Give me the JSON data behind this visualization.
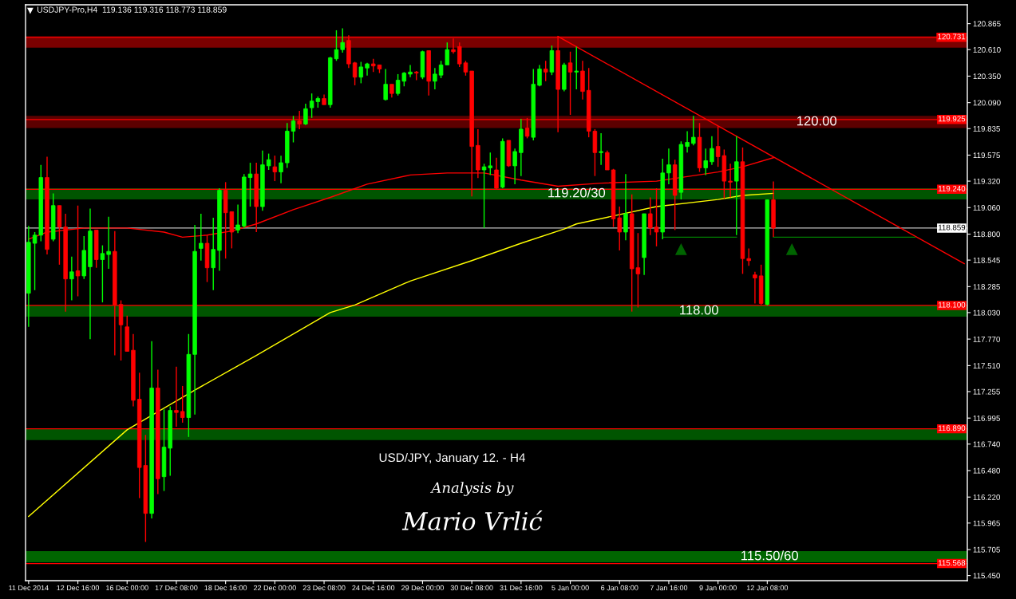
{
  "chart_data": {
    "type": "candlestick",
    "title": "USDJPY-Pro,H4  119.136 119.316 118.773 118.859",
    "categories": [
      "11 Dec 2014",
      null,
      null,
      null,
      null,
      null,
      null,
      null,
      "12 Dec 16:00",
      null,
      null,
      null,
      null,
      null,
      null,
      null,
      "16 Dec 00:00",
      null,
      null,
      null,
      null,
      null,
      null,
      null,
      "17 Dec 08:00",
      null,
      null,
      null,
      null,
      null,
      null,
      null,
      "18 Dec 16:00",
      null,
      null,
      null,
      null,
      null,
      null,
      null,
      "22 Dec 00:00",
      null,
      null,
      null,
      null,
      null,
      null,
      null,
      "23 Dec 08:00",
      null,
      null,
      null,
      null,
      null,
      null,
      null,
      "24 Dec 16:00",
      null,
      null,
      null,
      null,
      null,
      null,
      null,
      "29 Dec 00:00",
      null,
      null,
      null,
      null,
      null,
      null,
      null,
      "30 Dec 08:00",
      null,
      null,
      null,
      null,
      null,
      null,
      null,
      "31 Dec 16:00",
      null,
      null,
      null,
      null,
      null,
      null,
      null,
      "5 Jan 00:00",
      null,
      null,
      null,
      null,
      null,
      null,
      null,
      "6 Jan 08:00",
      null,
      null,
      null,
      null,
      null,
      null,
      null,
      "7 Jan 16:00",
      null,
      null,
      null,
      null,
      null,
      null,
      null,
      "9 Jan 00:00",
      null,
      null,
      null,
      null,
      null,
      null,
      null,
      "12 Jan 08:00",
      null,
      null,
      null,
      null,
      null,
      null,
      null,
      null,
      null,
      null,
      null,
      null,
      null,
      null,
      null,
      null,
      null,
      null,
      null,
      null,
      null,
      null,
      null,
      null,
      null,
      null,
      null,
      null,
      null,
      null,
      null,
      null
    ],
    "ohlc": [
      [
        118.22,
        118.88,
        117.89,
        118.72
      ],
      [
        118.71,
        118.82,
        118.25,
        118.79
      ],
      [
        118.79,
        119.48,
        118.73,
        119.355
      ],
      [
        119.355,
        119.56,
        118.6,
        118.65
      ],
      [
        118.75,
        119.2,
        118.73,
        119.08
      ],
      [
        119.08,
        119.08,
        118.5,
        118.87
      ],
      [
        118.87,
        119.0,
        118.04,
        118.36
      ],
      [
        118.36,
        118.58,
        118.15,
        118.43
      ],
      [
        118.44,
        119.08,
        118.19,
        118.39
      ],
      [
        118.39,
        118.78,
        118.36,
        118.64
      ],
      [
        118.48,
        119.05,
        117.77,
        118.83
      ],
      [
        118.84,
        118.84,
        118.47,
        118.55
      ],
      [
        118.55,
        118.69,
        118.13,
        118.61
      ],
      [
        118.6,
        118.97,
        118.46,
        118.63
      ],
      [
        118.63,
        118.83,
        117.61,
        118.105
      ],
      [
        118.11,
        118.15,
        117.56,
        117.91
      ],
      [
        117.89,
        118.0,
        117.65,
        117.65
      ],
      [
        117.66,
        117.82,
        117.11,
        117.17
      ],
      [
        117.18,
        117.44,
        116.21,
        116.51
      ],
      [
        116.53,
        116.83,
        115.78,
        116.06
      ],
      [
        116.06,
        117.75,
        116.01,
        117.29
      ],
      [
        117.29,
        117.47,
        116.25,
        116.4
      ],
      [
        116.42,
        117.08,
        116.28,
        116.71
      ],
      [
        116.7,
        117.11,
        116.43,
        117.07
      ],
      [
        117.07,
        117.5,
        116.91,
        117.05
      ],
      [
        117.06,
        117.31,
        116.95,
        117.0
      ],
      [
        117.0,
        117.82,
        116.81,
        117.62
      ],
      [
        117.62,
        118.89,
        117.03,
        118.63
      ],
      [
        118.66,
        119.0,
        118.54,
        118.71
      ],
      [
        118.71,
        118.79,
        118.33,
        118.47
      ],
      [
        118.47,
        118.96,
        118.25,
        118.65
      ],
      [
        118.64,
        119.25,
        118.44,
        119.23
      ],
      [
        119.23,
        119.31,
        118.56,
        119.01
      ],
      [
        119.02,
        119.02,
        118.66,
        118.82
      ],
      [
        118.84,
        119.09,
        118.81,
        118.89
      ],
      [
        118.88,
        119.39,
        118.86,
        119.36
      ],
      [
        119.355,
        119.5,
        119.07,
        119.39
      ],
      [
        119.39,
        119.5,
        118.82,
        119.07
      ],
      [
        119.07,
        119.62,
        119.03,
        119.48
      ],
      [
        119.47,
        119.59,
        119.43,
        119.53
      ],
      [
        119.46,
        119.57,
        119.32,
        119.41
      ],
      [
        119.41,
        119.57,
        119.3,
        119.5
      ],
      [
        119.5,
        119.89,
        119.45,
        119.81
      ],
      [
        119.81,
        119.96,
        119.7,
        119.91
      ],
      [
        119.91,
        120.01,
        119.83,
        119.88
      ],
      [
        119.88,
        120.08,
        119.87,
        120.03
      ],
      [
        120.04,
        120.18,
        119.94,
        120.105
      ],
      [
        120.1,
        120.15,
        120.04,
        120.13
      ],
      [
        120.13,
        120.17,
        120.07,
        120.07
      ],
      [
        120.07,
        120.54,
        120.04,
        120.53
      ],
      [
        120.52,
        120.8,
        120.5,
        120.61
      ],
      [
        120.61,
        120.82,
        120.58,
        120.68
      ],
      [
        120.7,
        120.75,
        120.43,
        120.47
      ],
      [
        120.48,
        120.49,
        120.26,
        120.34
      ],
      [
        120.34,
        120.49,
        120.28,
        120.44
      ],
      [
        120.43,
        120.48,
        120.355,
        120.47
      ],
      [
        120.47,
        120.52,
        120.39,
        120.45
      ],
      [
        120.46,
        120.46,
        120.38,
        120.42
      ],
      [
        120.12,
        120.42,
        120.11,
        120.27
      ],
      [
        120.27,
        120.27,
        120.14,
        120.18
      ],
      [
        120.18,
        120.37,
        120.16,
        120.31
      ],
      [
        120.3,
        120.39,
        120.25,
        120.38
      ],
      [
        120.37,
        120.46,
        120.34,
        120.39
      ],
      [
        120.39,
        120.4,
        120.31,
        120.38
      ],
      [
        120.34,
        120.6,
        120.32,
        120.59
      ],
      [
        120.6,
        120.6,
        120.16,
        120.3
      ],
      [
        120.3,
        120.43,
        120.22,
        120.37
      ],
      [
        120.36,
        120.5,
        120.33,
        120.46
      ],
      [
        120.46,
        120.68,
        120.46,
        120.61
      ],
      [
        120.61,
        120.72,
        120.57,
        120.59
      ],
      [
        120.64,
        120.68,
        120.44,
        120.47
      ],
      [
        120.48,
        120.5,
        120.355,
        120.39
      ],
      [
        120.4,
        120.4,
        119.17,
        119.66
      ],
      [
        119.67,
        119.83,
        119.35,
        119.43
      ],
      [
        119.43,
        119.49,
        118.86,
        119.46
      ],
      [
        119.45,
        119.6,
        119.38,
        119.47
      ],
      [
        119.43,
        119.55,
        119.24,
        119.25
      ],
      [
        119.26,
        119.74,
        119.25,
        119.71
      ],
      [
        119.72,
        119.72,
        119.46,
        119.47
      ],
      [
        119.47,
        119.64,
        119.29,
        119.61
      ],
      [
        119.6,
        119.93,
        119.37,
        119.83
      ],
      [
        119.84,
        119.94,
        119.74,
        119.76
      ],
      [
        119.75,
        120.42,
        119.72,
        120.27
      ],
      [
        120.26,
        120.46,
        120.25,
        120.42
      ],
      [
        120.42,
        120.5,
        120.3,
        120.39
      ],
      [
        120.39,
        120.65,
        120.36,
        120.6
      ],
      [
        120.6,
        120.74,
        119.8,
        120.22
      ],
      [
        120.22,
        120.48,
        120.2,
        120.46
      ],
      [
        120.48,
        120.59,
        119.97,
        120.39
      ],
      [
        120.39,
        120.64,
        120.22,
        120.4
      ],
      [
        120.4,
        120.5,
        120.12,
        120.2
      ],
      [
        120.21,
        120.43,
        119.75,
        119.81
      ],
      [
        119.81,
        119.83,
        119.37,
        119.6
      ],
      [
        119.6,
        119.79,
        119.48,
        119.61
      ],
      [
        119.6,
        119.62,
        119.43,
        119.43
      ],
      [
        119.43,
        119.44,
        118.87,
        118.95
      ],
      [
        118.96,
        119.07,
        118.64,
        118.82
      ],
      [
        118.82,
        119.39,
        118.74,
        119.0
      ],
      [
        119.0,
        119.19,
        118.04,
        118.46
      ],
      [
        118.47,
        118.81,
        118.08,
        118.41
      ],
      [
        118.57,
        119.0,
        118.4,
        119.0
      ],
      [
        119.0,
        119.16,
        118.79,
        118.86
      ],
      [
        118.87,
        119.25,
        118.68,
        118.82
      ],
      [
        118.82,
        119.54,
        118.75,
        119.4
      ],
      [
        119.4,
        119.64,
        119.29,
        119.48
      ],
      [
        119.48,
        119.53,
        118.84,
        119.18
      ],
      [
        119.21,
        119.71,
        119.14,
        119.68
      ],
      [
        119.66,
        119.81,
        119.6,
        119.7
      ],
      [
        119.69,
        119.96,
        119.67,
        119.75
      ],
      [
        119.75,
        119.89,
        119.41,
        119.45
      ],
      [
        119.45,
        119.64,
        119.38,
        119.52
      ],
      [
        119.51,
        119.76,
        119.48,
        119.64
      ],
      [
        119.66,
        119.86,
        119.46,
        119.56
      ],
      [
        119.57,
        119.63,
        119.15,
        119.32
      ],
      [
        119.32,
        119.49,
        119.16,
        119.31
      ],
      [
        119.32,
        119.76,
        118.79,
        119.51
      ],
      [
        119.51,
        119.65,
        118.41,
        118.56
      ],
      [
        118.56,
        118.66,
        118.49,
        118.54
      ],
      [
        118.4,
        118.43,
        118.12,
        118.37
      ],
      [
        118.39,
        118.5,
        118.105,
        118.12
      ],
      [
        118.11,
        119.14,
        118.1,
        119.136
      ],
      [
        119.136,
        119.316,
        118.773,
        118.859
      ],
      null,
      null,
      null,
      null,
      null,
      null,
      null,
      null,
      null,
      null,
      null,
      null,
      null,
      null,
      null,
      null,
      null,
      null,
      null,
      null,
      null,
      null,
      null,
      null,
      null,
      null,
      null,
      null,
      null,
      null,
      null
    ],
    "colors": [
      "#00ff00",
      "#00ff00",
      "#00ff00",
      "#ff0000",
      "#00ff00",
      "#ff0000",
      "#ff0000",
      "#00ff00",
      "#ff0000",
      "#00ff00",
      "#00ff00",
      "#ff0000",
      "#00ff00",
      "#00ff00",
      "#ff0000",
      "#ff0000",
      "#ff0000",
      "#ff0000",
      "#ff0000",
      "#ff0000",
      "#00ff00",
      "#ff0000",
      "#00ff00",
      "#00ff00",
      "#ff0000",
      "#ff0000",
      "#00ff00",
      "#00ff00",
      "#00ff00",
      "#ff0000",
      "#00ff00",
      "#00ff00",
      "#ff0000",
      "#ff0000",
      "#00ff00",
      "#00ff00",
      "#00ff00",
      "#ff0000",
      "#00ff00",
      "#00ff00",
      "#ff0000",
      "#00ff00",
      "#00ff00",
      "#00ff00",
      "#ff0000",
      "#00ff00",
      "#00ff00",
      "#00ff00",
      "#ff0000",
      "#00ff00",
      "#00ff00",
      "#00ff00",
      "#ff0000",
      "#ff0000",
      "#00ff00",
      "#00ff00",
      "#ff0000",
      "#ff0000",
      "#00ff00",
      "#ff0000",
      "#00ff00",
      "#00ff00",
      "#00ff00",
      "#ff0000",
      "#00ff00",
      "#ff0000",
      "#00ff00",
      "#00ff00",
      "#00ff00",
      "#ff0000",
      "#ff0000",
      "#ff0000",
      "#ff0000",
      "#ff0000",
      "#00ff00",
      "#00ff00",
      "#ff0000",
      "#00ff00",
      "#ff0000",
      "#00ff00",
      "#00ff00",
      "#ff0000",
      "#00ff00",
      "#00ff00",
      "#ff0000",
      "#00ff00",
      "#ff0000",
      "#00ff00",
      "#ff0000",
      "#00ff00",
      "#ff0000",
      "#ff0000",
      "#ff0000",
      "#00ff00",
      "#ff0000",
      "#ff0000",
      "#ff0000",
      "#00ff00",
      "#ff0000",
      "#ff0000",
      "#00ff00",
      "#ff0000",
      "#ff0000",
      "#00ff00",
      "#00ff00",
      "#ff0000",
      "#00ff00",
      "#00ff00",
      "#00ff00",
      "#ff0000",
      "#00ff00",
      "#00ff00",
      "#ff0000",
      "#ff0000",
      "#ff0000",
      "#00ff00",
      "#ff0000",
      "#ff0000",
      "#ff0000",
      "#ff0000",
      "#00ff00",
      "#ff0000",
      null,
      null,
      null,
      null,
      null,
      null,
      null,
      null,
      null,
      null,
      null,
      null,
      null,
      null,
      null,
      null,
      null,
      null,
      null,
      null,
      null,
      null,
      null,
      null,
      null,
      null,
      null,
      null,
      null,
      null,
      null
    ],
    "series": [
      {
        "type": "line",
        "color": "#ff0000",
        "values": [
          118.75,
          null,
          null,
          118.82,
          null,
          null,
          null,
          null,
          null,
          118.86,
          null,
          null,
          null,
          null,
          null,
          null,
          118.86,
          null,
          null,
          null,
          null,
          null,
          118.82,
          null,
          null,
          118.77,
          null,
          null,
          null,
          118.79,
          null,
          null,
          null,
          118.83,
          null,
          null,
          null,
          118.9,
          null,
          null,
          null,
          null,
          null,
          119.04,
          null,
          null,
          null,
          null,
          null,
          119.16,
          null,
          null,
          null,
          null,
          null,
          119.29,
          null,
          null,
          null,
          null,
          null,
          null,
          119.38,
          null,
          null,
          null,
          null,
          null,
          119.4,
          null,
          null,
          null,
          null,
          null,
          119.4,
          null,
          null,
          null,
          null,
          null,
          119.33,
          null,
          null,
          null,
          null,
          null,
          119.27,
          null,
          null,
          null,
          null,
          null,
          null,
          119.3,
          null,
          null,
          null,
          null,
          null,
          null,
          null,
          null,
          119.32,
          null,
          null,
          null,
          null,
          null,
          null,
          null,
          null,
          null,
          119.41,
          null,
          null,
          null,
          119.46,
          null,
          null,
          null,
          null,
          119.55,
          null,
          null,
          null,
          null,
          null,
          null,
          null,
          null,
          null,
          null,
          null,
          null,
          null,
          null,
          null,
          null,
          null,
          null,
          null,
          null,
          null,
          null,
          null,
          null,
          null,
          null,
          null,
          null,
          null,
          null,
          null
        ]
      },
      {
        "type": "line",
        "color": "#ffff00",
        "values": [
          116.03,
          null,
          null,
          null,
          null,
          null,
          null,
          null,
          null,
          null,
          null,
          null,
          null,
          null,
          null,
          null,
          116.88,
          null,
          null,
          null,
          null,
          null,
          null,
          null,
          null,
          null,
          null,
          117.27,
          null,
          null,
          null,
          null,
          null,
          null,
          null,
          null,
          null,
          117.61,
          null,
          null,
          null,
          null,
          null,
          null,
          null,
          null,
          null,
          null,
          null,
          118.03,
          null,
          null,
          null,
          118.105,
          null,
          null,
          null,
          null,
          null,
          null,
          null,
          null,
          118.34,
          null,
          null,
          null,
          null,
          null,
          null,
          null,
          null,
          null,
          118.54,
          null,
          null,
          null,
          null,
          null,
          null,
          null,
          118.71,
          null,
          null,
          null,
          null,
          null,
          null,
          118.85,
          null,
          118.9,
          null,
          null,
          null,
          null,
          null,
          null,
          null,
          null,
          null,
          null,
          null,
          null,
          119.07,
          null,
          null,
          null,
          null,
          null,
          null,
          null,
          null,
          null,
          119.14,
          null,
          null,
          null,
          119.18,
          null,
          null,
          null,
          null,
          119.2,
          null,
          null,
          null,
          null,
          null,
          null,
          null,
          null,
          null,
          null,
          null,
          null,
          null,
          null,
          null,
          null,
          null,
          null,
          null,
          null,
          null,
          null,
          null,
          null,
          null,
          null,
          null,
          null,
          null,
          null,
          null
        ]
      },
      {
        "type": "line",
        "color": "#ff0000",
        "values": [
          null,
          null,
          null,
          null,
          null,
          null,
          null,
          null,
          null,
          null,
          null,
          null,
          null,
          null,
          null,
          null,
          null,
          null,
          null,
          null,
          null,
          null,
          null,
          null,
          null,
          null,
          null,
          null,
          null,
          null,
          null,
          null,
          null,
          null,
          null,
          null,
          null,
          null,
          null,
          null,
          null,
          null,
          null,
          null,
          null,
          null,
          null,
          null,
          null,
          null,
          null,
          null,
          null,
          null,
          null,
          null,
          null,
          null,
          null,
          null,
          null,
          null,
          null,
          null,
          null,
          null,
          null,
          null,
          null,
          null,
          null,
          null,
          null,
          null,
          null,
          null,
          null,
          null,
          null,
          null,
          null,
          null,
          null,
          null,
          null,
          null,
          120.74,
          null,
          null,
          null,
          null,
          null,
          null,
          null,
          null,
          null,
          null,
          null,
          null,
          null,
          null,
          null,
          null,
          null,
          null,
          null,
          null,
          null,
          null,
          null,
          null,
          null,
          null,
          null,
          null,
          null,
          null,
          null,
          null,
          null,
          null,
          null,
          null,
          null,
          null,
          null,
          null,
          null,
          null,
          null,
          null,
          null,
          null,
          null,
          null,
          null,
          null,
          null,
          null,
          null,
          null,
          null,
          null,
          null,
          null,
          null,
          null,
          null,
          null,
          null,
          null,
          null,
          118.51
        ]
      },
      {
        "type": "line",
        "color": "#008000",
        "values": [
          null,
          null,
          null,
          null,
          null,
          null,
          null,
          null,
          null,
          null,
          null,
          null,
          null,
          null,
          null,
          null,
          null,
          null,
          null,
          null,
          null,
          null,
          null,
          null,
          null,
          null,
          null,
          null,
          null,
          null,
          null,
          null,
          null,
          null,
          null,
          null,
          null,
          null,
          null,
          null,
          null,
          null,
          null,
          null,
          null,
          null,
          null,
          null,
          null,
          null,
          null,
          null,
          null,
          null,
          null,
          null,
          null,
          null,
          null,
          null,
          null,
          null,
          null,
          null,
          null,
          null,
          null,
          null,
          null,
          null,
          null,
          null,
          null,
          null,
          null,
          null,
          null,
          null,
          null,
          null,
          null,
          null,
          null,
          null,
          null,
          null,
          null,
          null,
          null,
          null,
          null,
          null,
          null,
          null,
          null,
          null,
          null,
          null,
          null,
          null,
          null,
          null,
          null,
          118.77,
          null,
          null,
          null,
          null,
          null,
          null,
          null,
          null,
          null,
          null,
          null,
          118.77,
          null,
          null,
          null,
          null,
          null,
          null,
          null,
          null,
          null,
          null,
          null,
          null,
          null,
          null,
          null,
          null,
          null,
          null,
          null,
          null,
          null,
          null,
          null,
          null,
          null,
          null,
          null,
          null,
          null,
          null,
          null,
          null,
          null,
          null,
          null,
          null,
          null
        ]
      },
      {
        "type": "line",
        "color": "#008000",
        "values": [
          null,
          null,
          null,
          null,
          null,
          null,
          null,
          null,
          null,
          null,
          null,
          null,
          null,
          null,
          null,
          null,
          null,
          null,
          null,
          null,
          null,
          null,
          null,
          null,
          null,
          null,
          null,
          null,
          null,
          null,
          null,
          null,
          null,
          null,
          null,
          null,
          null,
          null,
          null,
          null,
          null,
          null,
          null,
          null,
          null,
          null,
          null,
          null,
          null,
          null,
          null,
          null,
          null,
          null,
          null,
          null,
          null,
          null,
          null,
          null,
          null,
          null,
          null,
          null,
          null,
          null,
          null,
          null,
          null,
          null,
          null,
          null,
          null,
          null,
          null,
          null,
          null,
          null,
          null,
          null,
          null,
          null,
          null,
          null,
          null,
          null,
          null,
          null,
          null,
          null,
          null,
          null,
          null,
          null,
          null,
          null,
          null,
          null,
          null,
          null,
          null,
          null,
          null,
          null,
          null,
          null,
          null,
          null,
          null,
          null,
          null,
          null,
          null,
          null,
          null,
          null,
          null,
          null,
          null,
          null,
          null,
          118.77,
          null,
          null,
          null,
          null,
          null,
          null,
          null,
          null,
          null,
          null,
          null,
          null,
          null,
          null,
          null,
          null,
          null,
          null,
          null,
          null,
          null,
          null,
          118.77,
          null,
          null,
          null,
          null,
          null,
          null,
          null,
          null
        ]
      }
    ],
    "ylim": [
      115.4,
      121.05
    ],
    "yticks": [
      {
        "value": 120.865,
        "label": "120.865"
      },
      {
        "value": 120.61,
        "label": "120.610"
      },
      {
        "value": 120.35,
        "label": "120.350"
      },
      {
        "value": 120.09,
        "label": "120.090"
      },
      {
        "value": 119.835,
        "label": "119.835"
      },
      {
        "value": 119.575,
        "label": "119.575"
      },
      {
        "value": 119.32,
        "label": "119.320"
      },
      {
        "value": 119.06,
        "label": "119.060"
      },
      {
        "value": 118.8,
        "label": "118.800"
      },
      {
        "value": 118.545,
        "label": "118.545"
      },
      {
        "value": 118.285,
        "label": "118.285"
      },
      {
        "value": 118.03,
        "label": "118.030"
      },
      {
        "value": 117.77,
        "label": "117.770"
      },
      {
        "value": 117.51,
        "label": "117.510"
      },
      {
        "value": 117.255,
        "label": "117.255"
      },
      {
        "value": 116.995,
        "label": "116.995"
      },
      {
        "value": 116.74,
        "label": "116.740"
      },
      {
        "value": 116.48,
        "label": "116.480"
      },
      {
        "value": 116.22,
        "label": "116.220"
      },
      {
        "value": 115.965,
        "label": "115.965"
      },
      {
        "value": 115.705,
        "label": "115.705"
      },
      {
        "value": 115.45,
        "label": "115.450"
      }
    ],
    "bands": [
      {
        "axis": "y",
        "from": 120.63,
        "to": 120.74,
        "color": "#7a0000"
      },
      {
        "axis": "y",
        "from": 119.84,
        "to": 119.96,
        "color": "#5c0000",
        "label": "120.00"
      },
      {
        "axis": "y",
        "from": 119.14,
        "to": 119.25,
        "color": "#005500",
        "label": "119.20/30"
      },
      {
        "axis": "y",
        "from": 117.99,
        "to": 118.1,
        "color": "#005500",
        "label": "118.00"
      },
      {
        "axis": "y",
        "from": 116.78,
        "to": 116.89,
        "color": "#005500"
      },
      {
        "axis": "y",
        "from": 115.58,
        "to": 115.69,
        "color": "#006600",
        "label": "115.50/60"
      }
    ],
    "ref_lines": [
      {
        "axis": "y",
        "value": 120.731,
        "label": "120.731",
        "color": "#ff0000"
      },
      {
        "axis": "y",
        "value": 119.925,
        "label": "119.925",
        "color": "#ff0000"
      },
      {
        "axis": "y",
        "value": 119.24,
        "label": "119.240",
        "color": "#ff0000"
      },
      {
        "axis": "y",
        "value": 118.859,
        "label": "118.859",
        "color": "#c0c0c0"
      },
      {
        "axis": "y",
        "value": 118.1,
        "label": "118.100",
        "color": "#ff0000"
      },
      {
        "axis": "y",
        "value": 116.89,
        "label": "116.890",
        "color": "#ff0000"
      },
      {
        "axis": "y",
        "value": 115.568,
        "label": "115.568",
        "color": "#ff0000"
      }
    ],
    "annotations": [
      "USD/JPY, January 12. - H4",
      "Analysis by",
      "Mario Vrlić"
    ],
    "grid": false,
    "legend": false
  }
}
